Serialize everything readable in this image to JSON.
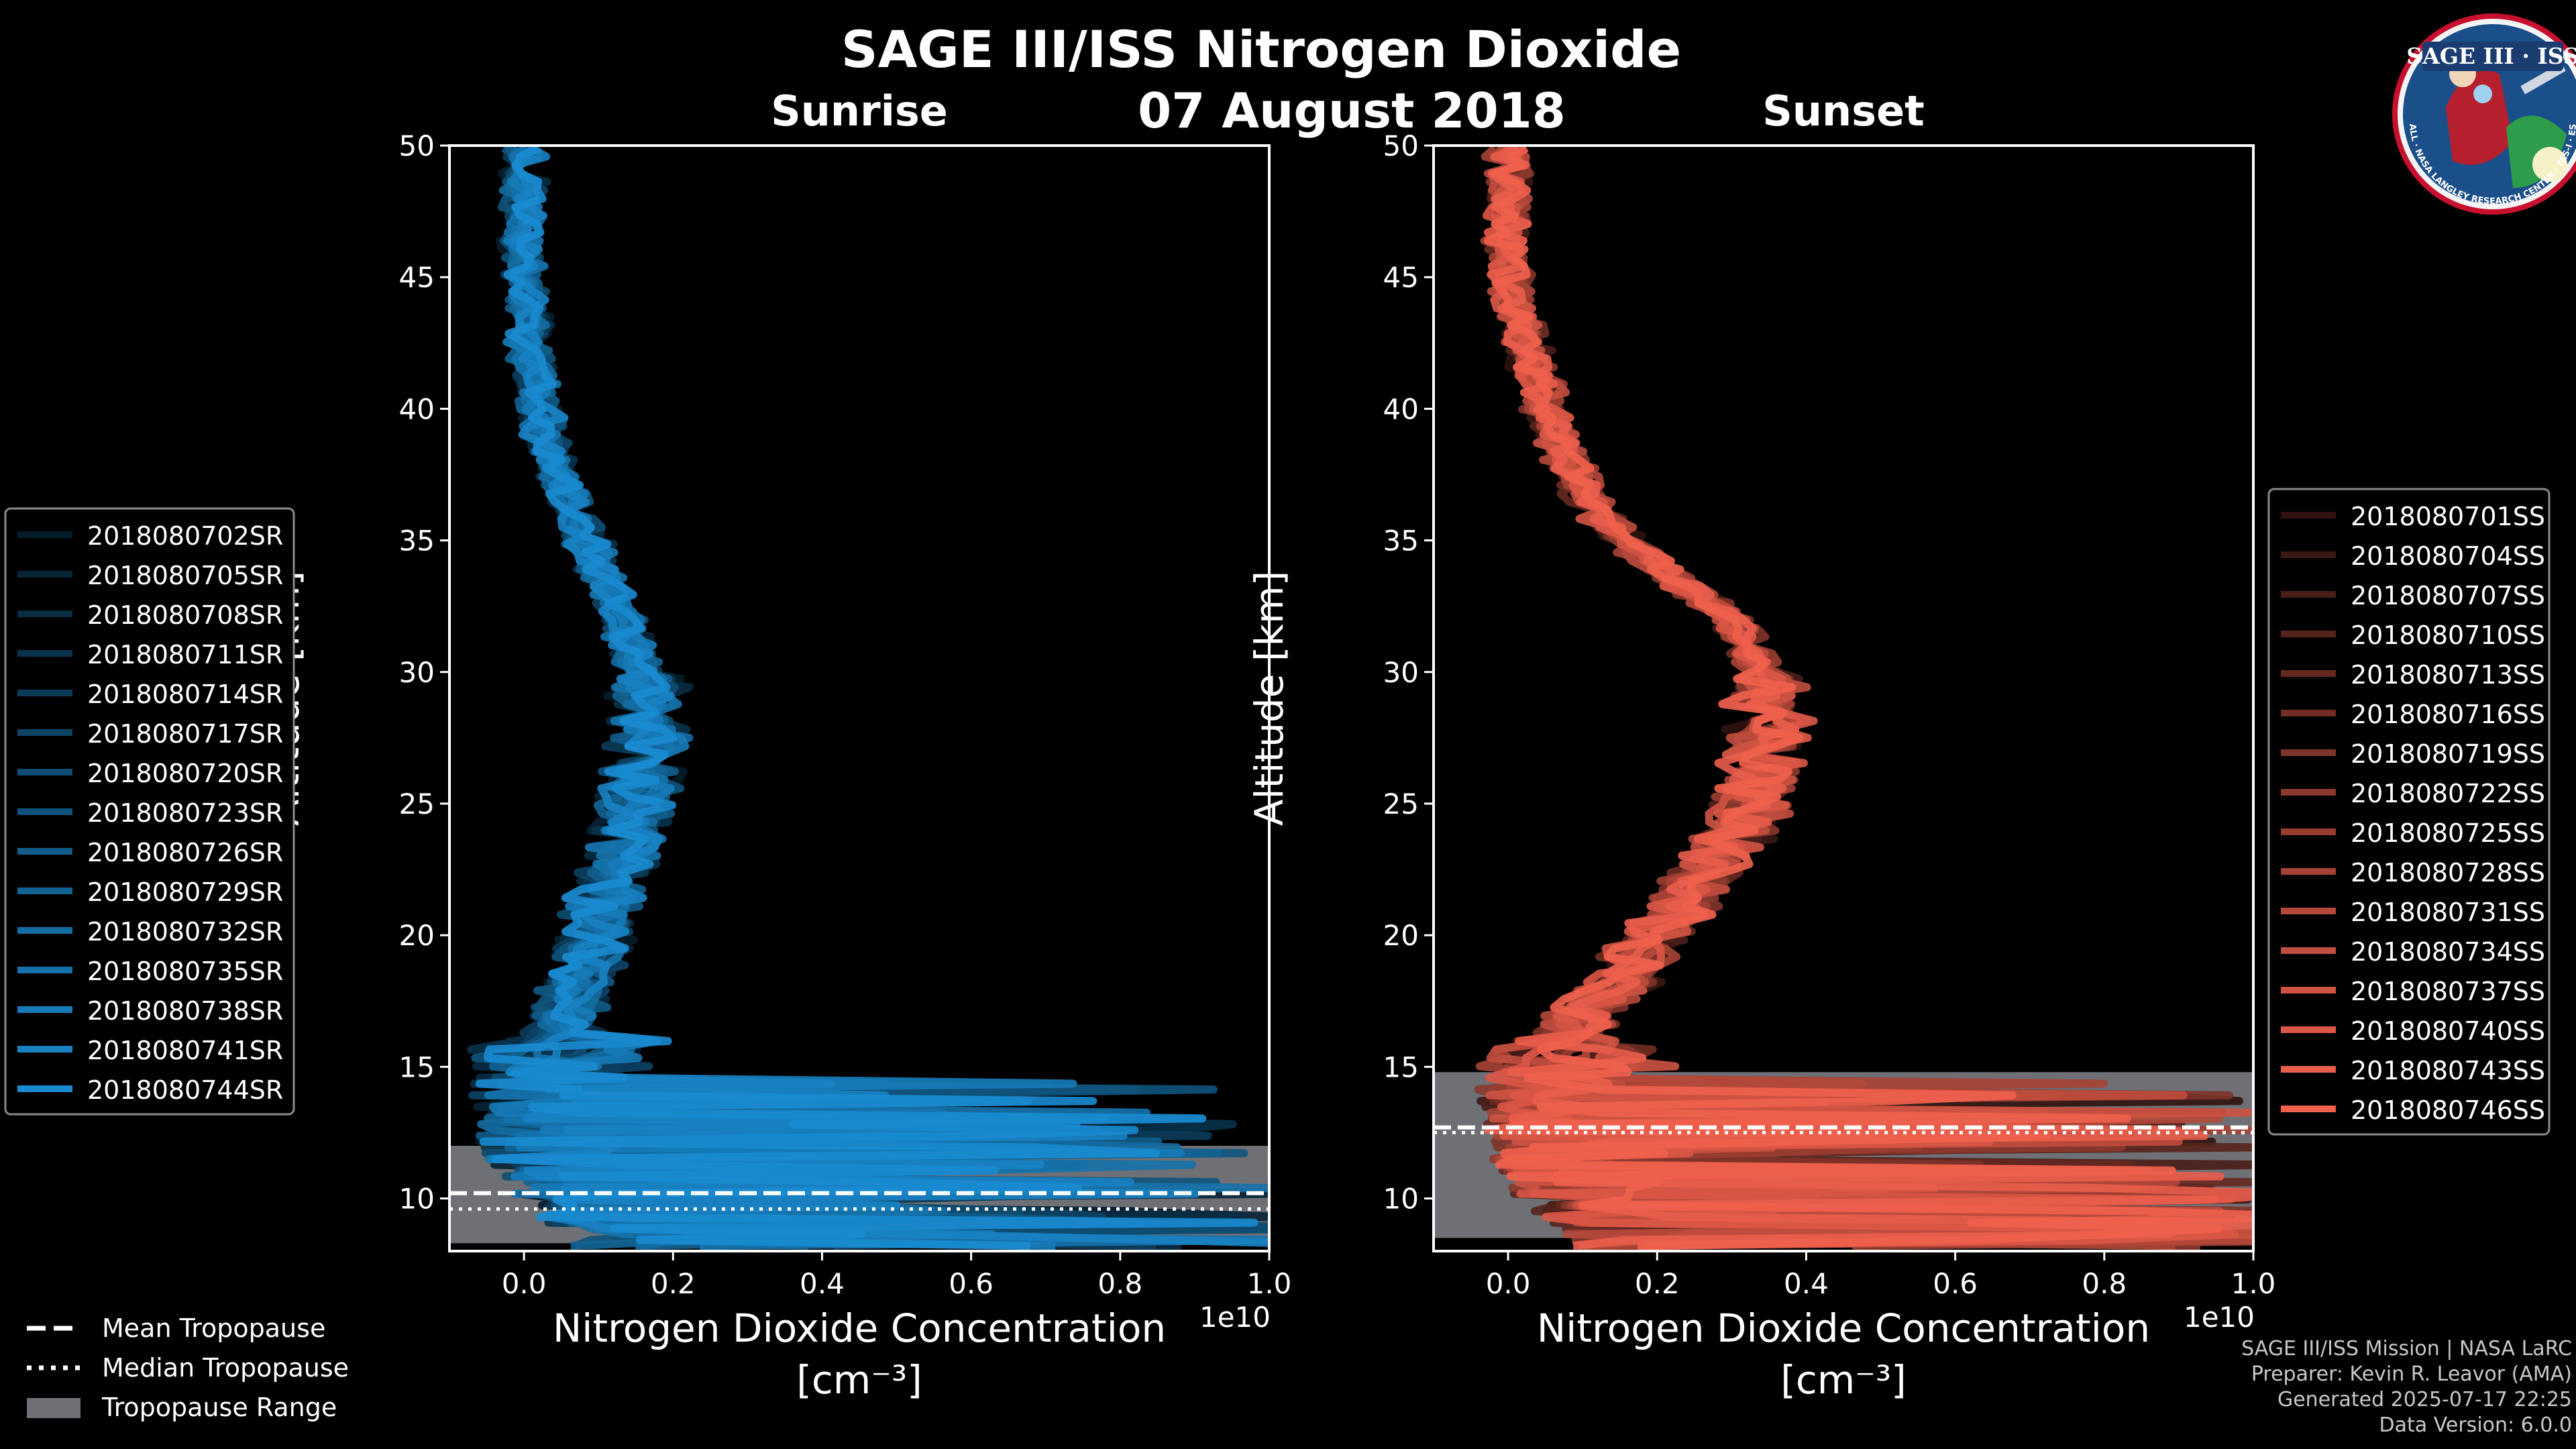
{
  "figure": {
    "title": "SAGE III/ISS Nitrogen Dioxide",
    "date": "07 August 2018",
    "logo": {
      "title": "SAGE III · ISS",
      "ring_text": "BALL · NASA LANGLEY RESEARCH CENTER · TAS-I · ESA",
      "icon": "sage-mission-patch-icon"
    },
    "footer": [
      "SAGE III/ISS Mission | NASA LaRC",
      "Preparer: Kevin R. Leavor (AMA)",
      "Generated 2025-07-17 22:25",
      "Data Version: 6.0.0"
    ]
  },
  "shared_legend": {
    "items": [
      {
        "label": "Mean Tropopause",
        "style": "dashed"
      },
      {
        "label": "Median Tropopause",
        "style": "dotted"
      },
      {
        "label": "Tropopause Range",
        "style": "patch"
      }
    ]
  },
  "colors": {
    "sunrise": "#1a8fd6",
    "sunset": "#f0604d",
    "range": "#6e7075",
    "axis": "#ffffff"
  },
  "chart_data": [
    {
      "type": "line",
      "panel": "sunrise",
      "title": "Sunrise",
      "xlabel": "Nitrogen Dioxide Concentration",
      "xunit": "[cm⁻³]",
      "ylabel": "Altitude [km]",
      "xlim": [
        -0.1,
        1.0
      ],
      "ylim": [
        8,
        50
      ],
      "x_scale_label": "1e10",
      "xticks": [
        0.0,
        0.2,
        0.4,
        0.6,
        0.8,
        1.0
      ],
      "xtick_labels": [
        "0.0",
        "0.2",
        "0.4",
        "0.6",
        "0.8",
        "1.0"
      ],
      "yticks": [
        10,
        15,
        20,
        25,
        30,
        35,
        40,
        45,
        50
      ],
      "ytick_labels": [
        "10",
        "15",
        "20",
        "25",
        "30",
        "35",
        "40",
        "45",
        "50"
      ],
      "tropopause": {
        "min": 8.3,
        "max": 12.0,
        "mean": 10.2,
        "median": 9.6
      },
      "profile_altitude": [
        8.5,
        10,
        12,
        14,
        16,
        17,
        18,
        20,
        22,
        24,
        26,
        28,
        30,
        32,
        34,
        36,
        38,
        40,
        42,
        44,
        46,
        48,
        50
      ],
      "profile_mean": [
        0.3,
        0.15,
        0.06,
        0.04,
        0.05,
        0.05,
        0.07,
        0.1,
        0.12,
        0.14,
        0.16,
        0.17,
        0.16,
        0.13,
        0.1,
        0.07,
        0.04,
        0.02,
        0.01,
        0.005,
        0.0,
        0.0,
        0.0
      ],
      "series": [
        {
          "name": "2018080702SR",
          "shade": 0.2
        },
        {
          "name": "2018080705SR",
          "shade": 0.25
        },
        {
          "name": "2018080708SR",
          "shade": 0.31
        },
        {
          "name": "2018080711SR",
          "shade": 0.36
        },
        {
          "name": "2018080714SR",
          "shade": 0.42
        },
        {
          "name": "2018080717SR",
          "shade": 0.47
        },
        {
          "name": "2018080720SR",
          "shade": 0.53
        },
        {
          "name": "2018080723SR",
          "shade": 0.58
        },
        {
          "name": "2018080726SR",
          "shade": 0.64
        },
        {
          "name": "2018080729SR",
          "shade": 0.69
        },
        {
          "name": "2018080732SR",
          "shade": 0.75
        },
        {
          "name": "2018080735SR",
          "shade": 0.8
        },
        {
          "name": "2018080738SR",
          "shade": 0.86
        },
        {
          "name": "2018080741SR",
          "shade": 0.91
        },
        {
          "name": "2018080744SR",
          "shade": 0.97
        }
      ]
    },
    {
      "type": "line",
      "panel": "sunset",
      "title": "Sunset",
      "xlabel": "Nitrogen Dioxide Concentration",
      "xunit": "[cm⁻³]",
      "ylabel": "Altitude [km]",
      "xlim": [
        -0.1,
        1.0
      ],
      "ylim": [
        8,
        50
      ],
      "x_scale_label": "1e10",
      "xticks": [
        0.0,
        0.2,
        0.4,
        0.6,
        0.8,
        1.0
      ],
      "xtick_labels": [
        "0.0",
        "0.2",
        "0.4",
        "0.6",
        "0.8",
        "1.0"
      ],
      "yticks": [
        10,
        15,
        20,
        25,
        30,
        35,
        40,
        45,
        50
      ],
      "ytick_labels": [
        "10",
        "15",
        "20",
        "25",
        "30",
        "35",
        "40",
        "45",
        "50"
      ],
      "tropopause": {
        "min": 8.5,
        "max": 14.8,
        "mean": 12.7,
        "median": 12.5
      },
      "profile_altitude": [
        8.5,
        10,
        12,
        14,
        16,
        17,
        18,
        20,
        22,
        24,
        26,
        28,
        30,
        32,
        34,
        36,
        38,
        40,
        42,
        44,
        46,
        48,
        50
      ],
      "profile_mean": [
        0.35,
        0.2,
        0.12,
        0.1,
        0.08,
        0.1,
        0.14,
        0.2,
        0.26,
        0.31,
        0.34,
        0.35,
        0.34,
        0.3,
        0.2,
        0.12,
        0.08,
        0.05,
        0.03,
        0.01,
        0.0,
        0.0,
        0.0
      ],
      "series": [
        {
          "name": "2018080701SS",
          "shade": 0.2
        },
        {
          "name": "2018080704SS",
          "shade": 0.25
        },
        {
          "name": "2018080707SS",
          "shade": 0.31
        },
        {
          "name": "2018080710SS",
          "shade": 0.36
        },
        {
          "name": "2018080713SS",
          "shade": 0.42
        },
        {
          "name": "2018080716SS",
          "shade": 0.47
        },
        {
          "name": "2018080719SS",
          "shade": 0.53
        },
        {
          "name": "2018080722SS",
          "shade": 0.58
        },
        {
          "name": "2018080725SS",
          "shade": 0.64
        },
        {
          "name": "2018080728SS",
          "shade": 0.69
        },
        {
          "name": "2018080731SS",
          "shade": 0.75
        },
        {
          "name": "2018080734SS",
          "shade": 0.8
        },
        {
          "name": "2018080737SS",
          "shade": 0.86
        },
        {
          "name": "2018080740SS",
          "shade": 0.91
        },
        {
          "name": "2018080743SS",
          "shade": 0.97
        },
        {
          "name": "2018080746SS",
          "shade": 1.0
        }
      ]
    }
  ]
}
